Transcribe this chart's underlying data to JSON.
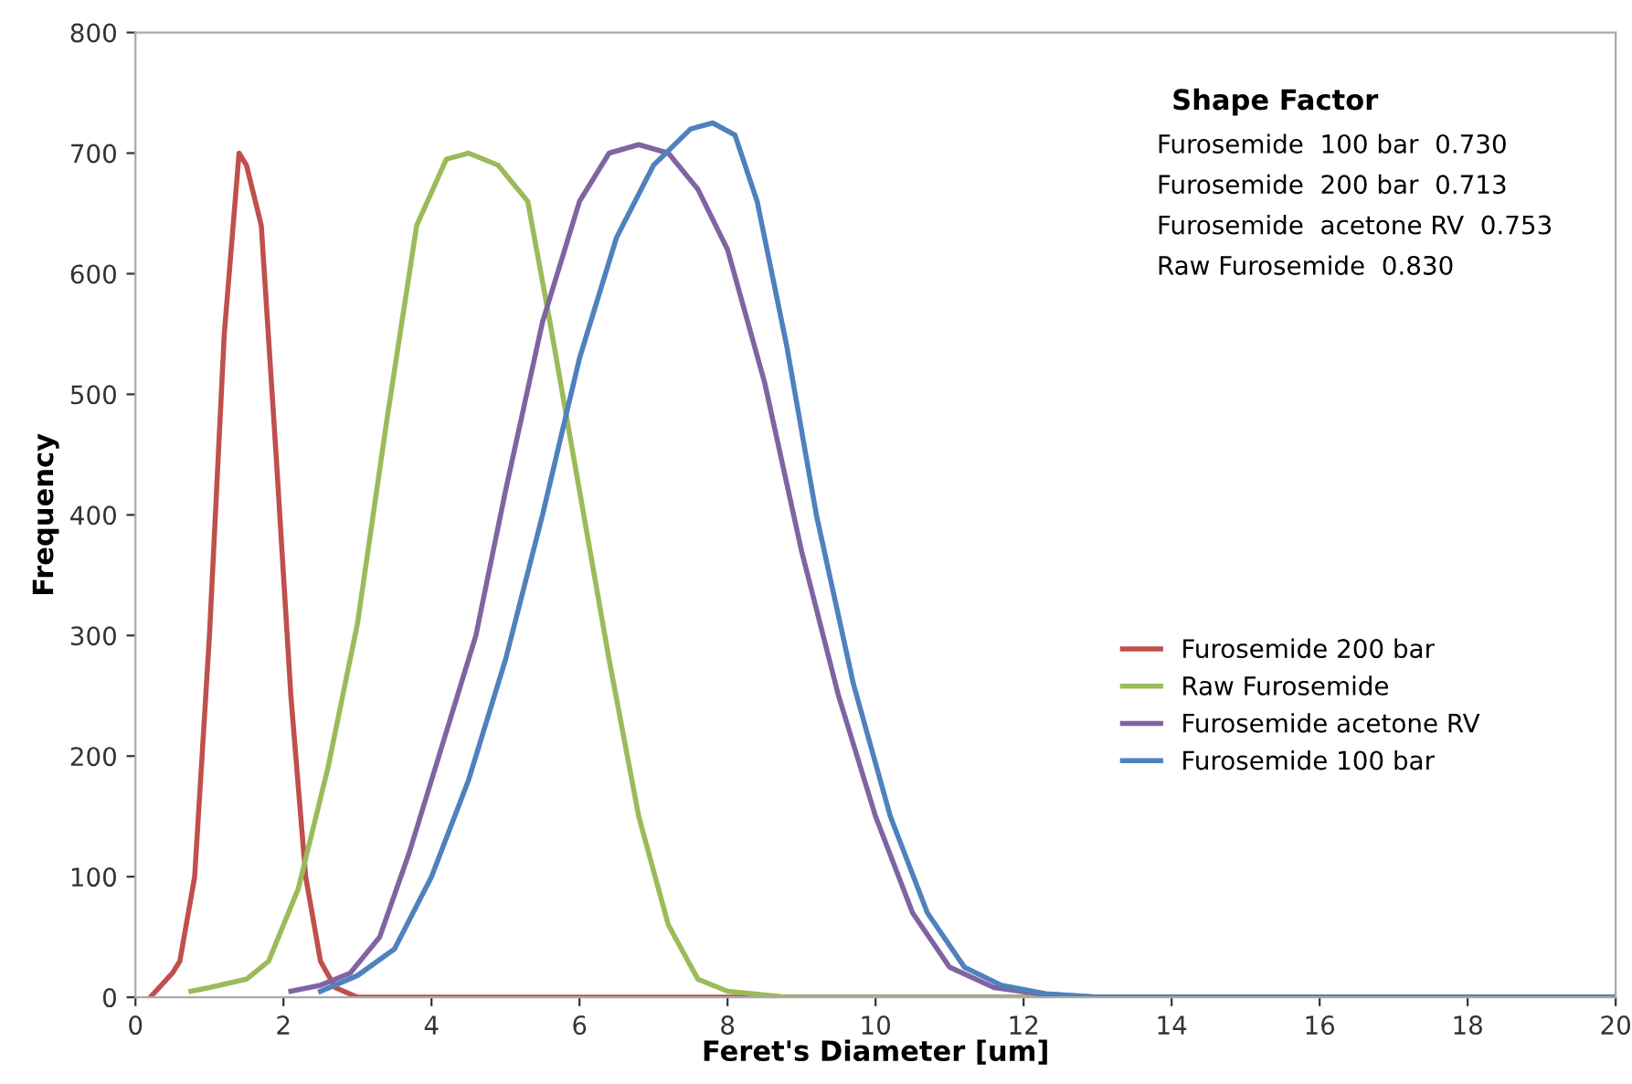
{
  "chart_data": {
    "type": "line",
    "xlabel": "Feret's Diameter [um]",
    "ylabel": "Frequency",
    "xlim": [
      0,
      20
    ],
    "xticks": [
      0,
      2,
      4,
      6,
      8,
      10,
      12,
      14,
      16,
      18,
      20
    ],
    "ylim": [
      0,
      800
    ],
    "yticks": [
      0,
      100,
      200,
      300,
      400,
      500,
      600,
      700,
      800
    ],
    "grid": false,
    "legend": "right",
    "marker": "none",
    "line_style": "solid",
    "annotations": [
      "Shape Factor",
      "Furosemide  100 bar  0.730",
      "Furosemide  200 bar  0.713",
      "Furosemide  acetone RV  0.753",
      "Raw Furosemide  0.830"
    ],
    "series": [
      {
        "name": "Furosemide 200 bar",
        "color": "#c0504d",
        "x": [
          0.2,
          0.5,
          0.6,
          0.8,
          1.0,
          1.2,
          1.4,
          1.5,
          1.7,
          1.9,
          2.1,
          2.3,
          2.5,
          2.7,
          3.0,
          20
        ],
        "values": [
          0,
          20,
          30,
          100,
          300,
          550,
          700,
          690,
          640,
          450,
          250,
          100,
          30,
          8,
          0,
          0
        ]
      },
      {
        "name": "Raw Furosemide",
        "color": "#9bbb59",
        "x": [
          0.75,
          1,
          1.5,
          1.8,
          2.2,
          2.6,
          3,
          3.4,
          3.8,
          4.2,
          4.5,
          4.9,
          5.3,
          5.6,
          6,
          6.4,
          6.8,
          7.2,
          7.6,
          8,
          8.8,
          20
        ],
        "values": [
          5,
          8,
          15,
          30,
          90,
          190,
          310,
          480,
          640,
          695,
          700,
          690,
          660,
          560,
          420,
          280,
          150,
          60,
          15,
          5,
          0,
          0
        ]
      },
      {
        "name": "Furosemide acetone RV",
        "color": "#8064a2",
        "x": [
          2.1,
          2.5,
          2.9,
          3.3,
          3.7,
          4.1,
          4.6,
          5,
          5.5,
          6,
          6.4,
          6.8,
          7.2,
          7.6,
          8,
          8.5,
          9,
          9.5,
          10,
          10.5,
          11,
          11.6,
          12.2,
          13,
          20
        ],
        "values": [
          5,
          10,
          20,
          50,
          120,
          200,
          300,
          420,
          560,
          660,
          700,
          707,
          700,
          670,
          620,
          510,
          370,
          250,
          150,
          70,
          25,
          8,
          3,
          0,
          0
        ]
      },
      {
        "name": "Furosemide 100 bar",
        "color": "#4f81bd",
        "x": [
          2.5,
          3,
          3.5,
          4,
          4.5,
          5,
          5.5,
          6,
          6.5,
          7,
          7.5,
          7.8,
          8.1,
          8.4,
          8.8,
          9.2,
          9.7,
          10.2,
          10.7,
          11.2,
          11.7,
          12.3,
          13,
          20
        ],
        "values": [
          5,
          18,
          40,
          100,
          180,
          280,
          400,
          530,
          630,
          690,
          720,
          725,
          715,
          660,
          540,
          400,
          260,
          150,
          70,
          25,
          10,
          3,
          0,
          0
        ]
      }
    ]
  }
}
